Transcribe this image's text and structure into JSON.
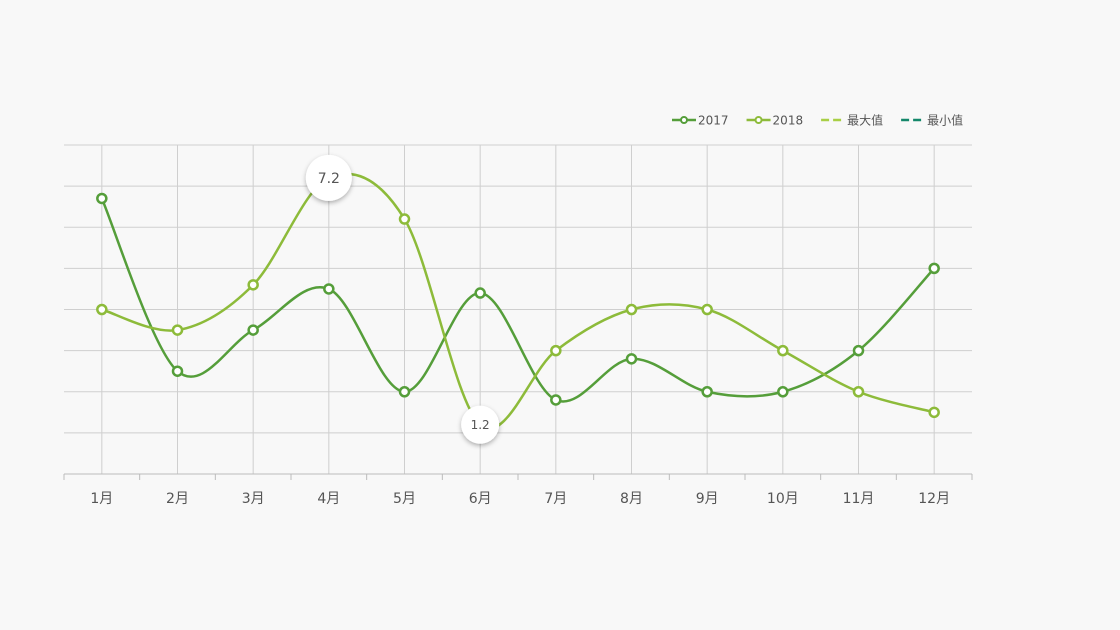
{
  "chart_data": {
    "type": "line",
    "categories": [
      "1月",
      "2月",
      "3月",
      "4月",
      "5月",
      "6月",
      "7月",
      "8月",
      "9月",
      "10月",
      "11月",
      "12月"
    ],
    "series": [
      {
        "name": "2017",
        "color": "#559e3a",
        "values": [
          6.7,
          2.5,
          3.5,
          4.5,
          2.0,
          4.4,
          1.8,
          2.8,
          2.0,
          2.0,
          3.0,
          5.0
        ]
      },
      {
        "name": "2018",
        "color": "#8dbb3a",
        "values": [
          4.0,
          3.5,
          4.6,
          7.2,
          6.2,
          1.2,
          3.0,
          4.0,
          4.0,
          3.0,
          2.0,
          1.5
        ],
        "value_labels": [
          null,
          null,
          null,
          "7.2",
          null,
          "1.2",
          null,
          null,
          null,
          null,
          null,
          null
        ]
      }
    ],
    "reference_lines": [
      {
        "name": "最大值",
        "color": "#a8cf45"
      },
      {
        "name": "最小值",
        "color": "#14876a"
      }
    ],
    "ylim": [
      0,
      8
    ],
    "yticks": [
      0,
      1,
      2,
      3,
      4,
      5,
      6,
      7,
      8
    ],
    "grid": true,
    "smooth": true,
    "legend": "top-right"
  }
}
